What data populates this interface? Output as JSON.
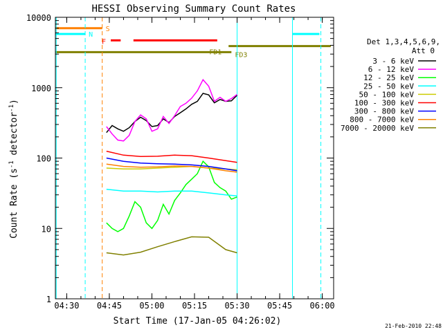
{
  "chart_data": {
    "type": "line",
    "title": "HESSI Observing Summary Count Rates",
    "xlabel": "Start Time (17-Jan-05 04:26:02)",
    "ylabel_main": "Count Rate (s",
    "ylabel_sup": "-1",
    "ylabel_mid": " detector",
    "ylabel_sup2": "-1",
    "ylabel_end": ")",
    "x_unit": "minutes since 04:26:02",
    "xlim": [
      0,
      98
    ],
    "ylim": [
      1,
      10000
    ],
    "y_scale": "log",
    "x_ticks": [
      {
        "label": "04:30",
        "value": 4
      },
      {
        "label": "04:45",
        "value": 19
      },
      {
        "label": "05:00",
        "value": 34
      },
      {
        "label": "05:15",
        "value": 49
      },
      {
        "label": "05:30",
        "value": 64
      },
      {
        "label": "05:45",
        "value": 79
      },
      {
        "label": "06:00",
        "value": 94
      }
    ],
    "y_ticks": [
      {
        "label": "1",
        "value": 1
      },
      {
        "label": "10",
        "value": 10
      },
      {
        "label": "100",
        "value": 100
      },
      {
        "label": "1000",
        "value": 1000
      },
      {
        "label": "10000",
        "value": 10000
      }
    ],
    "legend_header": [
      "Det 1,3,4,5,6,9,",
      "Att 0"
    ],
    "legend_position": "right",
    "footer_date": "21-Feb-2010 22:48",
    "flag_bars": [
      {
        "label": "S",
        "color": "#ff8000",
        "y": 7000,
        "segments": [
          [
            0,
            16.5
          ]
        ]
      },
      {
        "label": "N",
        "color": "#00ffff",
        "y": 5800,
        "segments": [
          [
            0,
            10.5
          ],
          [
            83.5,
            93
          ]
        ]
      },
      {
        "label": "F",
        "color": "#ff0000",
        "y": 4700,
        "segments": [
          [
            19.5,
            23
          ],
          [
            27.5,
            57
          ]
        ]
      },
      {
        "label": "FD1",
        "color": "#808000",
        "y": 3900,
        "segments": [
          [
            61,
            97
          ]
        ]
      },
      {
        "label": "FD3",
        "color": "#808000",
        "y": 3200,
        "segments": [
          [
            0,
            62
          ]
        ]
      }
    ],
    "vlines": [
      {
        "x": 0.3,
        "color": "#00ffff",
        "style": "solid"
      },
      {
        "x": 10.5,
        "color": "#00ffff",
        "style": "dashed"
      },
      {
        "x": 16.5,
        "color": "#ff8000",
        "style": "dashed"
      },
      {
        "x": 64,
        "color": "#00ffff",
        "style": "solid"
      },
      {
        "x": 83.5,
        "color": "#00ffff",
        "style": "solid"
      },
      {
        "x": 93.5,
        "color": "#00ffff",
        "style": "dashed"
      }
    ],
    "series": [
      {
        "name": "3 - 6 keV",
        "color": "#000000",
        "x": [
          18,
          20,
          22,
          24,
          26,
          28,
          30,
          32,
          34,
          36,
          38,
          40,
          42,
          44,
          46,
          48,
          50,
          52,
          54,
          56,
          58,
          60,
          62,
          64
        ],
        "y": [
          230,
          290,
          260,
          240,
          270,
          330,
          380,
          340,
          280,
          290,
          360,
          320,
          390,
          440,
          500,
          580,
          640,
          830,
          790,
          610,
          680,
          640,
          650,
          780
        ]
      },
      {
        "name": "6 - 12 keV",
        "color": "#ff00ff",
        "x": [
          18,
          20,
          22,
          24,
          26,
          28,
          30,
          32,
          34,
          36,
          38,
          40,
          42,
          44,
          46,
          48,
          50,
          52,
          54,
          56,
          58,
          60,
          62,
          64
        ],
        "y": [
          280,
          220,
          180,
          175,
          210,
          330,
          410,
          360,
          240,
          260,
          390,
          310,
          400,
          540,
          600,
          710,
          900,
          1300,
          1050,
          640,
          730,
          640,
          700,
          800
        ]
      },
      {
        "name": "12 - 25 keV",
        "color": "#00ff00",
        "x": [
          18,
          20,
          22,
          24,
          26,
          28,
          30,
          32,
          34,
          36,
          38,
          40,
          42,
          44,
          46,
          48,
          50,
          52,
          54,
          56,
          58,
          60,
          62,
          64
        ],
        "y": [
          12,
          10,
          9,
          10,
          15,
          24,
          20,
          12,
          10,
          13,
          22,
          16,
          25,
          32,
          42,
          50,
          60,
          90,
          75,
          45,
          38,
          34,
          26,
          28
        ]
      },
      {
        "name": "25 - 50 keV",
        "color": "#00ffff",
        "x": [
          18,
          24,
          30,
          36,
          42,
          48,
          54,
          60,
          64
        ],
        "y": [
          36,
          34,
          34,
          33,
          34,
          34,
          32,
          30,
          29
        ]
      },
      {
        "name": "50 - 100 keV",
        "color": "#cccc00",
        "x": [
          18,
          24,
          30,
          36,
          42,
          48,
          54,
          60,
          64
        ],
        "y": [
          72,
          70,
          70,
          72,
          74,
          76,
          72,
          70,
          68
        ]
      },
      {
        "name": "100 - 300 keV",
        "color": "#ff0000",
        "x": [
          18,
          24,
          30,
          36,
          42,
          48,
          54,
          60,
          64
        ],
        "y": [
          125,
          110,
          105,
          106,
          110,
          108,
          100,
          92,
          87
        ]
      },
      {
        "name": "300 - 800 keV",
        "color": "#0000ff",
        "x": [
          18,
          24,
          30,
          36,
          42,
          48,
          54,
          60,
          64
        ],
        "y": [
          100,
          90,
          85,
          83,
          82,
          80,
          76,
          70,
          66
        ]
      },
      {
        "name": "800 - 7000 keV",
        "color": "#ff8000",
        "x": [
          18,
          24,
          30,
          36,
          42,
          48,
          54,
          60,
          64
        ],
        "y": [
          82,
          76,
          74,
          75,
          77,
          76,
          72,
          66,
          63
        ]
      },
      {
        "name": "7000 - 20000 keV",
        "color": "#808000",
        "x": [
          18,
          24,
          30,
          36,
          42,
          48,
          54,
          60,
          64
        ],
        "y": [
          4.5,
          4.2,
          4.6,
          5.5,
          6.5,
          7.6,
          7.5,
          5.0,
          4.5
        ]
      }
    ]
  }
}
